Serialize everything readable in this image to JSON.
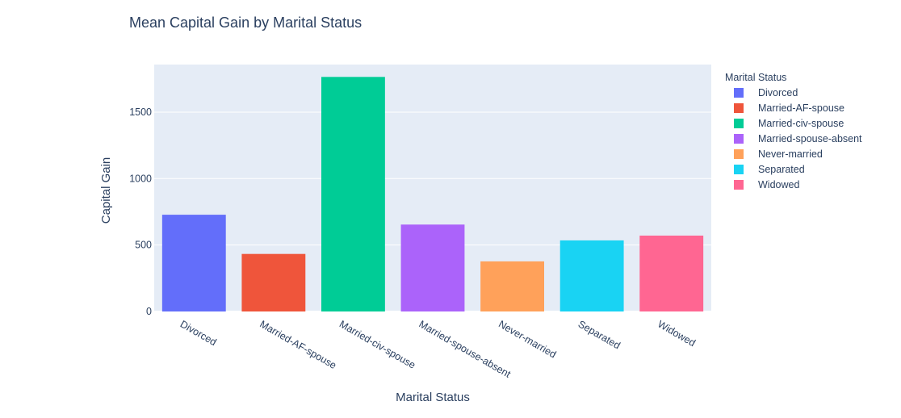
{
  "chart_data": {
    "type": "bar",
    "title": "Mean Capital Gain by Marital Status",
    "xlabel": "Marital Status",
    "ylabel": "Capital Gain",
    "categories": [
      "Divorced",
      "Married-AF-spouse",
      "Married-civ-spouse",
      "Married-spouse-absent",
      "Never-married",
      "Separated",
      "Widowed"
    ],
    "values": [
      728,
      433,
      1765,
      654,
      377,
      535,
      571
    ],
    "colors": [
      "#636efa",
      "#ef553b",
      "#00cc96",
      "#ab63fa",
      "#ffa15a",
      "#19d3f3",
      "#ff6692"
    ],
    "ylim": [
      0,
      1858
    ],
    "yticks": [
      0,
      500,
      1000,
      1500
    ],
    "ytick_labels": [
      "0",
      "500",
      "1000",
      "1500"
    ],
    "grid": true,
    "plot_bgcolor": "#e5ecf6",
    "legend": {
      "title": "Marital Status",
      "placement": "right",
      "entries": [
        "Divorced",
        "Married-AF-spouse",
        "Married-civ-spouse",
        "Married-spouse-absent",
        "Never-married",
        "Separated",
        "Widowed"
      ]
    }
  }
}
